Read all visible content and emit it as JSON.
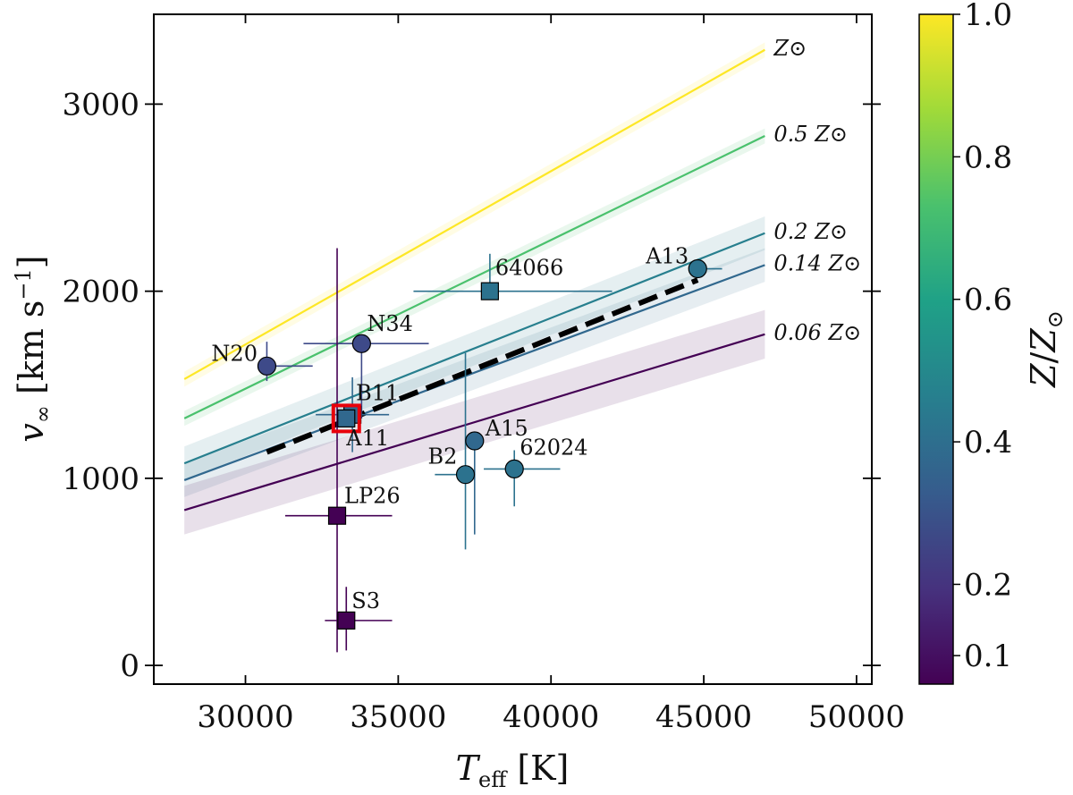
{
  "chart_data": {
    "type": "scatter",
    "xlabel": "T_eff [K]",
    "ylabel": "v_∞ [km s⁻¹]",
    "xlim": [
      27000,
      50500
    ],
    "ylim": [
      -100,
      3480
    ],
    "xticks": [
      30000,
      35000,
      40000,
      45000,
      50000
    ],
    "yticks": [
      0,
      1000,
      2000,
      3000
    ],
    "colorbar": {
      "label": "Z/Z⊙",
      "range": [
        0.06,
        1.0
      ],
      "ticks": [
        {
          "value": 0.1,
          "label": "0.1"
        },
        {
          "value": 0.2,
          "label": "0.2"
        },
        {
          "value": 0.4,
          "label": "0.4"
        },
        {
          "value": 0.6,
          "label": "0.6"
        },
        {
          "value": 0.8,
          "label": "0.8"
        },
        {
          "value": 1.0,
          "label": "1.0"
        }
      ],
      "stops": [
        "#440154",
        "#46327e",
        "#365c8d",
        "#277f8e",
        "#1fa187",
        "#4ac16d",
        "#a0da39",
        "#fde725"
      ]
    },
    "metallicity_lines": [
      {
        "label": "Z⊙",
        "z": 1.0,
        "x": [
          28000,
          47000
        ],
        "y": [
          1530,
          3290
        ],
        "color": "#fde725",
        "band": 40
      },
      {
        "label": "0.5 Z⊙",
        "z": 0.5,
        "x": [
          28000,
          47000
        ],
        "y": [
          1320,
          2830
        ],
        "color": "#4ac16d",
        "band": 40
      },
      {
        "label": "0.2 Z⊙",
        "z": 0.2,
        "x": [
          28000,
          47000
        ],
        "y": [
          1080,
          2310
        ],
        "color": "#277f8e",
        "band": 90
      },
      {
        "label": "0.14 Z⊙",
        "z": 0.14,
        "x": [
          28000,
          47000
        ],
        "y": [
          990,
          2140
        ],
        "color": "#31688e",
        "band": 90
      },
      {
        "label": "0.06 Z⊙",
        "z": 0.06,
        "x": [
          28000,
          47000
        ],
        "y": [
          830,
          1770
        ],
        "color": "#440154",
        "band": 130
      }
    ],
    "fit_line": {
      "x": [
        30700,
        44800
      ],
      "y": [
        1140,
        2060
      ],
      "color": "#000000"
    },
    "points": [
      {
        "name": "N20",
        "marker": "circle",
        "x": 30700,
        "y": 1600,
        "xerr": [
          0,
          1500
        ],
        "yerr": [
          80,
          130
        ],
        "color": "#3e4a89"
      },
      {
        "name": "N34",
        "marker": "circle",
        "x": 33800,
        "y": 1720,
        "xerr": [
          1900,
          2200
        ],
        "yerr": [
          400,
          0
        ],
        "color": "#3e4a89"
      },
      {
        "name": "B11",
        "marker": "square",
        "x": 33500,
        "y": 1340,
        "xerr": [
          1200,
          1200
        ],
        "yerr": [
          200,
          200
        ],
        "color": "#31688e"
      },
      {
        "name": "A11",
        "marker": "square",
        "x": 33300,
        "y": 1320,
        "xerr": [
          0,
          0
        ],
        "yerr": [
          0,
          0
        ],
        "color": "#31688e",
        "highlight": "#e8000b"
      },
      {
        "name": "64066",
        "marker": "square",
        "x": 38000,
        "y": 2000,
        "xerr": [
          2500,
          4000
        ],
        "yerr": [
          0,
          200
        ],
        "color": "#2c728e"
      },
      {
        "name": "A13",
        "marker": "circle",
        "x": 44800,
        "y": 2120,
        "xerr": [
          0,
          800
        ],
        "yerr": [
          0,
          0
        ],
        "color": "#2c728e"
      },
      {
        "name": "A15",
        "marker": "circle",
        "x": 37500,
        "y": 1200,
        "xerr": [
          0,
          0
        ],
        "yerr": [
          500,
          0
        ],
        "color": "#31688e"
      },
      {
        "name": "B2",
        "marker": "circle",
        "x": 37200,
        "y": 1020,
        "xerr": [
          1000,
          0
        ],
        "yerr": [
          400,
          650
        ],
        "color": "#2c728e"
      },
      {
        "name": "62024",
        "marker": "circle",
        "x": 38800,
        "y": 1050,
        "xerr": [
          1000,
          1500
        ],
        "yerr": [
          200,
          100
        ],
        "color": "#2c728e"
      },
      {
        "name": "LP26",
        "marker": "square",
        "x": 33000,
        "y": 800,
        "xerr": [
          1700,
          1800
        ],
        "yerr": [
          730,
          1430
        ],
        "color": "#440154"
      },
      {
        "name": "S3",
        "marker": "square",
        "x": 33300,
        "y": 240,
        "xerr": [
          700,
          1500
        ],
        "yerr": [
          160,
          180
        ],
        "color": "#440154"
      }
    ]
  }
}
